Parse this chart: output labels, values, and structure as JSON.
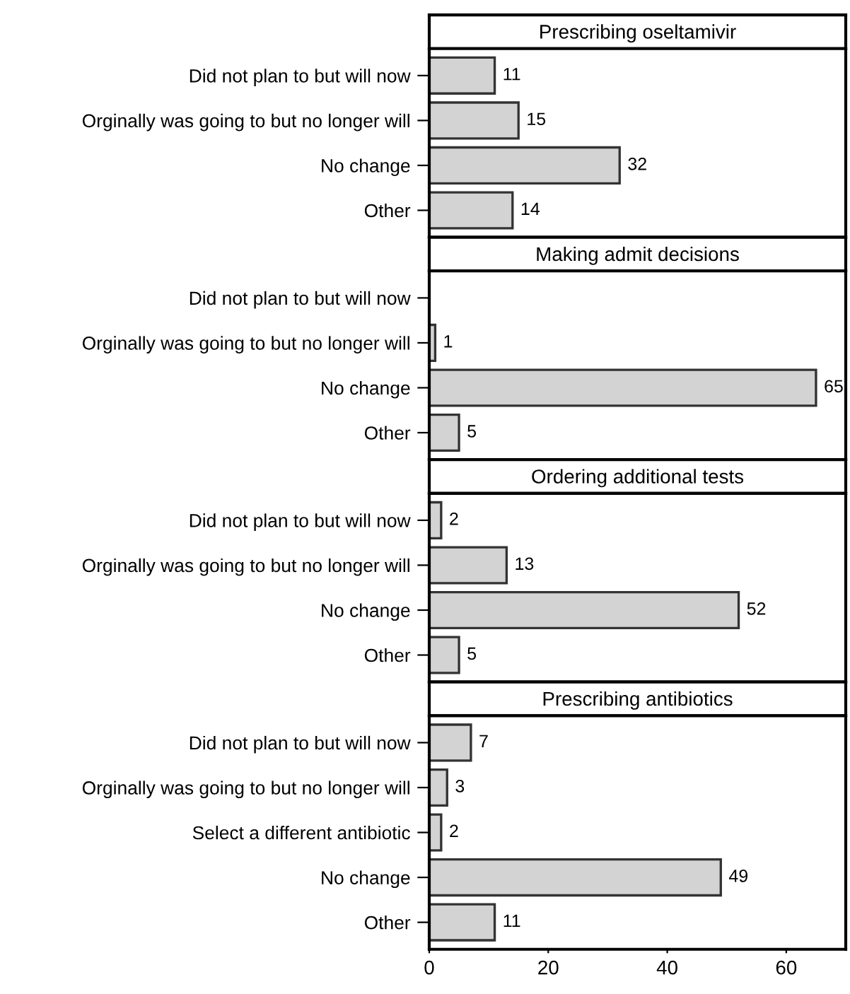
{
  "chart_data": [
    {
      "type": "bar",
      "orientation": "horizontal",
      "title": "Prescribing oseltamivir",
      "categories": [
        "Did not plan to but will now",
        "Orginally was going to but no longer will",
        "No change",
        "Other"
      ],
      "values": [
        11,
        15,
        32,
        14
      ],
      "color": "#d3d3d3",
      "data_labels": true,
      "xlim": [
        0,
        70
      ],
      "xticks": [
        0,
        20,
        40,
        60
      ],
      "tick_labels": "y"
    },
    {
      "type": "bar",
      "orientation": "horizontal",
      "title": "Making admit decisions",
      "categories": [
        "Did not plan to but will now",
        "Orginally was going to but no longer will",
        "No change",
        "Other"
      ],
      "values": [
        null,
        1,
        65,
        5
      ],
      "value_labels": [
        null,
        "1",
        "65",
        "5"
      ],
      "color": "#d3d3d3",
      "xlim": [
        0,
        70
      ],
      "xticks": [
        0,
        20,
        40,
        60
      ],
      "tick_labels": "y"
    },
    {
      "type": "bar",
      "orientation": "horizontal",
      "title": "Ordering additional tests",
      "categories": [
        "Did not plan to but will now",
        "Orginally was going to but no longer will",
        "No change",
        "Other"
      ],
      "values": [
        2,
        13,
        52,
        5
      ],
      "color": "#d3d3d3",
      "data_labels": true,
      "xlim": [
        0,
        70
      ],
      "xticks": [
        0,
        20,
        40,
        60
      ],
      "tick_labels": "y"
    },
    {
      "type": "bar",
      "orientation": "horizontal",
      "title": "Prescribing antibiotics",
      "categories": [
        "Did not plan to but will now",
        "Orginally was going to but no longer will",
        "Select a different antibiotic",
        "No change",
        "Other"
      ],
      "values": [
        7,
        3,
        2,
        49,
        11
      ],
      "color": "#d3d3d3",
      "data_labels": true,
      "xlim": [
        0,
        70
      ],
      "xticks": [
        0,
        20,
        40,
        60
      ]
    }
  ]
}
